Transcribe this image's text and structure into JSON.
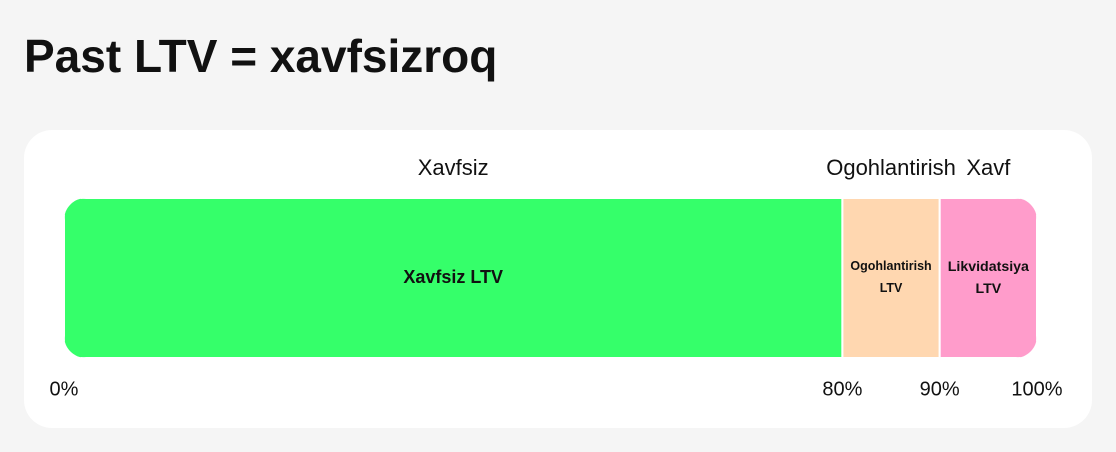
{
  "chart_data": {
    "type": "zone_bar",
    "title": "Past LTV = xavfsizroq",
    "xlim": [
      0,
      100
    ],
    "xticks": [
      {
        "value": 0,
        "label": "0%"
      },
      {
        "value": 80,
        "label": "80%"
      },
      {
        "value": 90,
        "label": "90%"
      },
      {
        "value": 100,
        "label": "100%"
      }
    ],
    "series": [
      {
        "name": "Xavfsiz",
        "segment_label": "Xavfsiz LTV",
        "color": "#35ff6a",
        "values": [
          80
        ]
      },
      {
        "name": "Ogohlantirish",
        "segment_label": "Ogohlantirish LTV",
        "color": "#ffd7b0",
        "values": [
          10
        ]
      },
      {
        "name": "Xavf",
        "segment_label": "Likvidatsiya LTV",
        "color": "#ff9ccb",
        "values": [
          10
        ]
      }
    ]
  }
}
